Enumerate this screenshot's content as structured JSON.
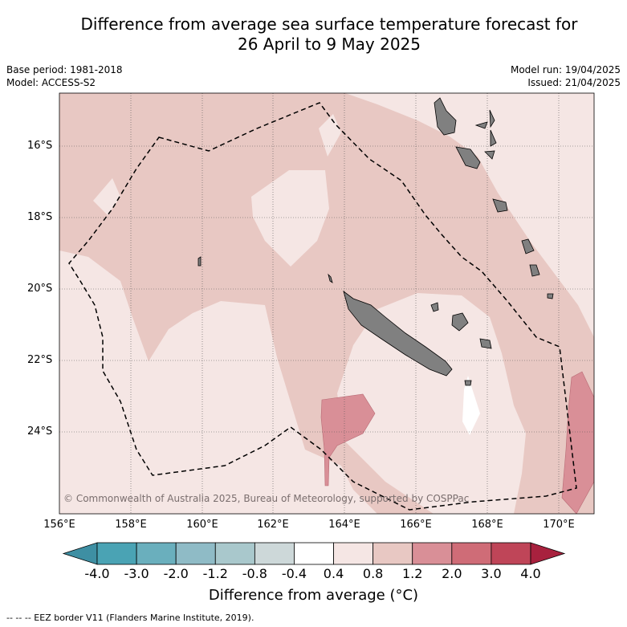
{
  "title_line1": "Difference from average sea surface temperature forecast for",
  "title_line2": "26 April to 9 May 2025",
  "base_period": "Base period: 1981-2018",
  "model": "Model: ACCESS-S2",
  "model_run": "Model run: 19/04/2025",
  "issued": "Issued: 21/04/2025",
  "lat_labels": [
    "16°S",
    "18°S",
    "20°S",
    "22°S",
    "24°S"
  ],
  "lon_labels": [
    "156°E",
    "158°E",
    "160°E",
    "162°E",
    "164°E",
    "166°E",
    "168°E",
    "170°E"
  ],
  "copyright": "© Commonwealth of Australia 2025, Bureau of Meteorology, supported by COSPPac",
  "colorbar": {
    "ticks": [
      "-4.0",
      "-3.0",
      "-2.0",
      "-1.2",
      "-0.8",
      "-0.4",
      "0.4",
      "0.8",
      "1.2",
      "2.0",
      "3.0",
      "4.0"
    ],
    "colors": [
      "#3e8fa3",
      "#4aa3b4",
      "#6aafbd",
      "#8fbbc6",
      "#a9c8cc",
      "#cdd8d9",
      "#ffffff",
      "#f5e6e4",
      "#e8c8c3",
      "#d98f97",
      "#cf6c77",
      "#bf4558",
      "#a8213e"
    ],
    "title": "Difference from average (°C)"
  },
  "eez_note": "-- -- -- EEZ border V11 (Flanders Marine Institute, 2019).",
  "colors": {
    "land": "#808080",
    "level_0_4": "#f5e6e4",
    "level_0_8": "#e8c8c3",
    "level_1_2": "#d98f97",
    "white_region": "#ffffff"
  }
}
